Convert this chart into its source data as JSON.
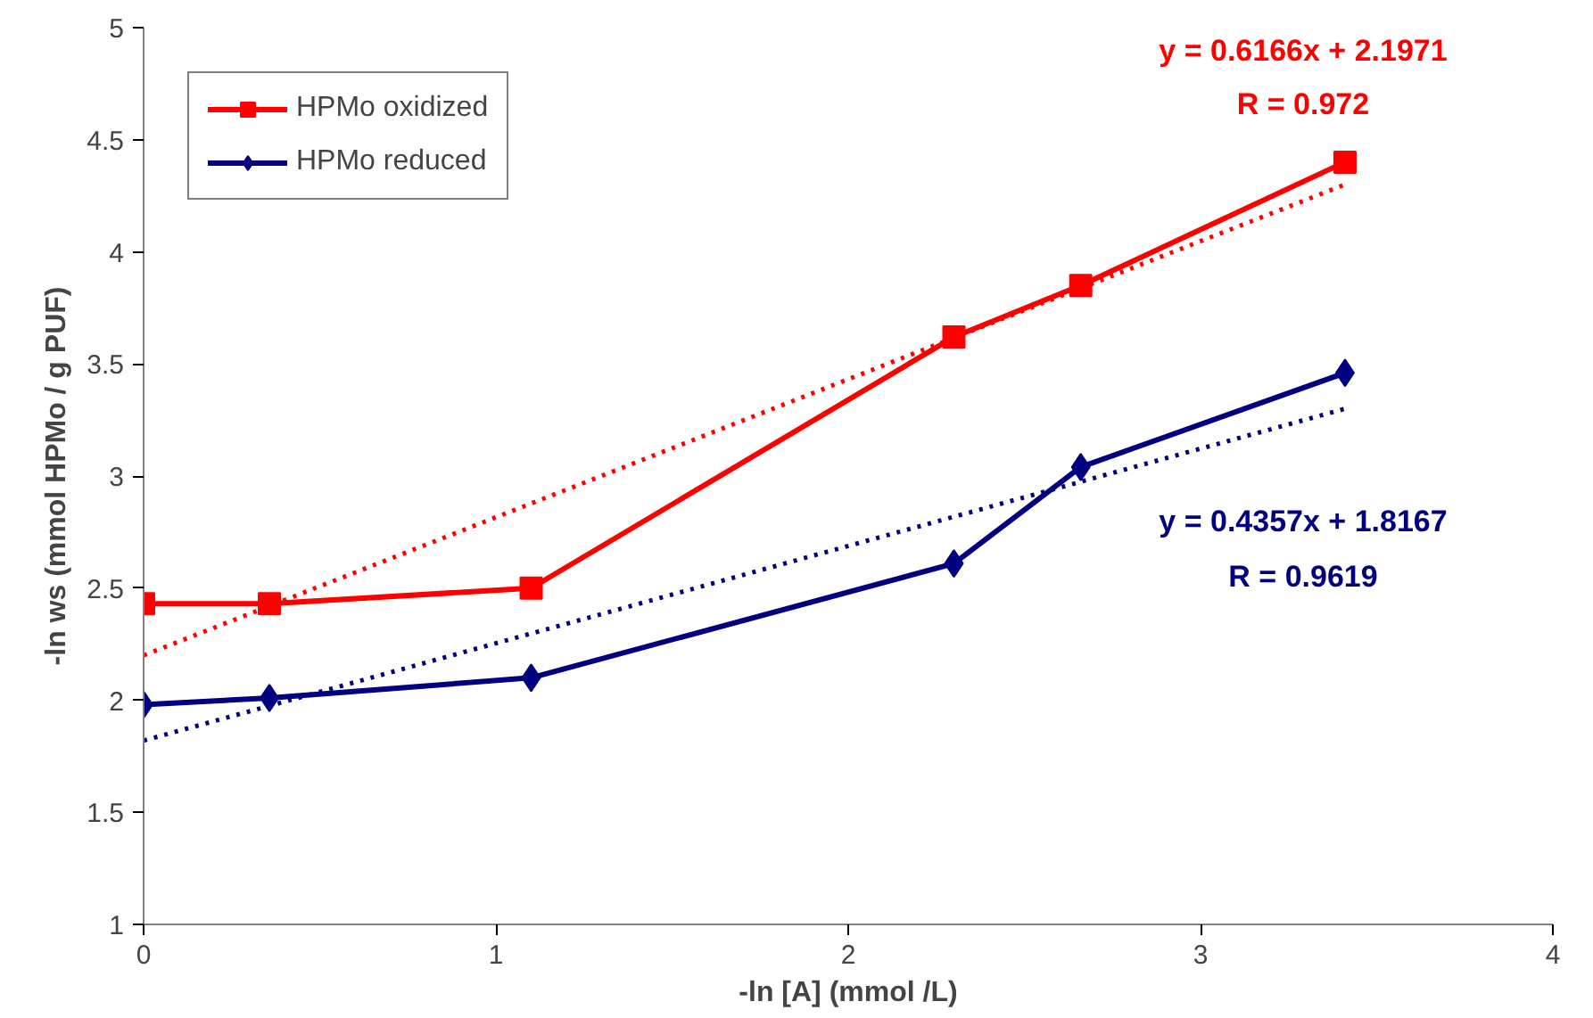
{
  "chart_data": {
    "type": "line",
    "xlabel": "-ln [A] (mmol /L)",
    "ylabel": "-ln ws (mmol HPMo / g PUF)",
    "xlim": [
      0,
      4
    ],
    "ylim": [
      1,
      5
    ],
    "xticks": [
      0,
      1,
      2,
      3,
      4
    ],
    "yticks": [
      1,
      1.5,
      2,
      2.5,
      3,
      3.5,
      4,
      4.5,
      5
    ],
    "grid": false,
    "legend": "top left",
    "series": [
      {
        "name": "HPMo oxidized",
        "color": "#ff0000",
        "marker": "square",
        "line_style": "solid",
        "x": [
          0,
          0.357,
          1.1,
          2.3,
          2.66,
          3.41
        ],
        "values": [
          2.43,
          2.43,
          2.5,
          3.62,
          3.85,
          4.4
        ]
      },
      {
        "name": "HPMo reduced",
        "color": "#000080",
        "marker": "diamond",
        "line_style": "solid",
        "x": [
          0,
          0.357,
          1.1,
          2.3,
          2.66,
          3.41
        ],
        "values": [
          1.98,
          2.01,
          2.1,
          2.61,
          3.04,
          3.46
        ]
      },
      {
        "color": "#ff0000",
        "marker": "none",
        "line_style": "dotted",
        "x": [
          0,
          3.41
        ],
        "values": [
          2.2,
          4.3
        ]
      },
      {
        "color": "#000080",
        "marker": "none",
        "line_style": "dotted",
        "x": [
          0,
          3.41
        ],
        "values": [
          1.82,
          3.3
        ]
      }
    ],
    "annotations": [
      "y = 0.6166x + 2.1971",
      "R = 0.972",
      "y = 0.4357x + 1.8167",
      "R = 0.9619"
    ]
  }
}
